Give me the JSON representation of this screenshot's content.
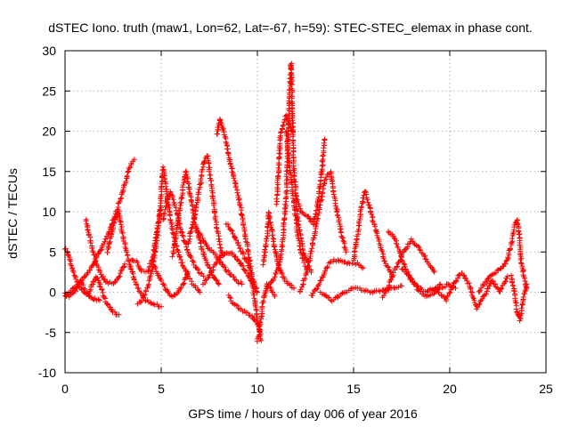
{
  "chart_data": {
    "type": "scatter",
    "title": "dSTEC Iono. truth (maw1, Lon=62, Lat=-67, h=59): STEC-STEC_elemax in phase cont.",
    "xlabel": "GPS time / hours of day 006 of year 2016",
    "ylabel": "dSTEC  / TECUs",
    "xlim": [
      0,
      25
    ],
    "ylim": [
      -10,
      30
    ],
    "x_ticks": [
      0,
      5,
      10,
      15,
      20,
      25
    ],
    "y_ticks": [
      -10,
      -5,
      0,
      5,
      10,
      15,
      20,
      25,
      30
    ],
    "grid": true,
    "marker": "plus",
    "color": "#ff0000",
    "tracks": [
      {
        "x": [
          0.0,
          0.3,
          0.6,
          0.9,
          1.2,
          1.5,
          1.8,
          2.2,
          2.6,
          3.0,
          3.3,
          3.5,
          3.6
        ],
        "y": [
          -0.5,
          0.2,
          0.8,
          1.5,
          2.5,
          3.5,
          5.0,
          7.0,
          9.5,
          12.5,
          15.0,
          16.2,
          16.5
        ]
      },
      {
        "x": [
          0.0,
          0.15,
          0.3,
          0.5,
          0.7,
          0.9,
          1.1,
          1.3,
          1.5,
          1.8
        ],
        "y": [
          5.5,
          5.0,
          3.5,
          2.0,
          1.0,
          0.3,
          -0.2,
          -0.5,
          -0.8,
          -1.0
        ]
      },
      {
        "x": [
          0.0,
          0.2,
          0.4,
          0.6,
          0.8,
          1.0,
          1.2,
          1.4,
          1.6,
          1.8,
          2.0,
          2.2,
          2.5,
          2.8
        ],
        "y": [
          0.0,
          -0.5,
          -0.2,
          0.4,
          1.5,
          0.5,
          -0.3,
          0.8,
          2.0,
          1.0,
          -0.5,
          -1.5,
          -2.5,
          -2.8
        ]
      },
      {
        "x": [
          1.1,
          1.3,
          1.6,
          1.9,
          2.2,
          2.5,
          2.7,
          2.9,
          3.1
        ],
        "y": [
          9.0,
          6.5,
          3.8,
          2.0,
          1.2,
          1.0,
          1.5,
          2.5,
          3.5
        ]
      },
      {
        "x": [
          2.2,
          2.4,
          2.6,
          2.8,
          3.0,
          3.3,
          3.6,
          3.9,
          4.2,
          4.6,
          5.0
        ],
        "y": [
          5.0,
          7.0,
          9.0,
          10.0,
          7.0,
          4.0,
          1.5,
          0.0,
          -1.0,
          -1.5,
          -1.8
        ]
      },
      {
        "x": [
          3.4,
          3.7,
          4.0,
          4.3,
          4.6,
          4.8,
          5.0
        ],
        "y": [
          4.0,
          3.8,
          2.5,
          2.5,
          4.8,
          7.8,
          10.5
        ]
      },
      {
        "x": [
          3.8,
          4.0,
          4.2,
          4.4,
          4.6,
          4.8,
          5.0,
          5.1,
          5.3,
          5.6,
          6.0,
          6.5,
          7.0
        ],
        "y": [
          -1.5,
          -1.0,
          0.0,
          1.5,
          3.5,
          7.0,
          12.0,
          15.5,
          12.0,
          7.5,
          4.0,
          1.5,
          0.0
        ]
      },
      {
        "x": [
          4.6,
          4.9,
          5.2,
          5.5,
          5.8,
          6.1,
          6.4
        ],
        "y": [
          3.5,
          2.0,
          0.5,
          -0.5,
          -0.2,
          0.8,
          2.5
        ]
      },
      {
        "x": [
          5.1,
          5.3,
          5.5,
          5.7,
          5.9,
          6.1,
          6.4,
          6.8,
          7.2
        ],
        "y": [
          9.0,
          11.5,
          12.5,
          11.0,
          9.0,
          7.0,
          5.0,
          3.0,
          2.0
        ]
      },
      {
        "x": [
          5.6,
          5.8,
          6.0,
          6.2,
          6.3,
          6.5,
          6.8,
          7.1,
          7.4,
          7.7,
          8.0
        ],
        "y": [
          4.5,
          7.5,
          11.0,
          14.0,
          15.0,
          12.0,
          8.0,
          5.5,
          3.5,
          2.0,
          1.0
        ]
      },
      {
        "x": [
          6.4,
          6.7,
          7.0,
          7.2,
          7.4,
          7.6,
          7.8,
          8.0,
          8.2
        ],
        "y": [
          6.0,
          9.0,
          13.0,
          16.0,
          17.0,
          13.5,
          9.5,
          6.5,
          4.5
        ]
      },
      {
        "x": [
          6.8,
          7.1,
          7.4,
          7.7,
          8.0,
          8.3,
          8.6,
          8.9,
          9.2
        ],
        "y": [
          8.0,
          7.0,
          5.5,
          5.0,
          4.0,
          3.0,
          2.2,
          1.5,
          1.0
        ]
      },
      {
        "x": [
          7.9,
          8.05,
          8.2,
          8.35,
          8.5,
          8.7,
          8.9,
          9.1,
          9.3,
          9.6,
          9.8,
          10.0,
          10.2
        ],
        "y": [
          19.5,
          21.5,
          20.5,
          19.0,
          17.0,
          15.0,
          13.0,
          11.0,
          8.0,
          4.0,
          0.0,
          -3.5,
          -6.0
        ]
      },
      {
        "x": [
          7.2,
          7.5,
          7.8,
          8.1,
          8.4,
          8.7,
          9.0,
          9.3,
          9.6,
          9.9
        ],
        "y": [
          1.0,
          2.0,
          3.5,
          4.5,
          5.0,
          4.8,
          4.0,
          3.0,
          1.8,
          0.5
        ]
      },
      {
        "x": [
          8.4,
          8.7,
          9.0,
          9.2,
          9.4,
          9.6,
          9.8,
          10.0
        ],
        "y": [
          8.5,
          7.5,
          6.0,
          5.0,
          4.0,
          3.0,
          1.5,
          0.0
        ]
      },
      {
        "x": [
          8.5,
          8.8,
          9.1,
          9.4,
          9.7,
          10.0
        ],
        "y": [
          -0.5,
          -1.5,
          -2.0,
          -2.5,
          -3.0,
          -4.0
        ]
      },
      {
        "x": [
          10.0,
          10.1,
          10.2,
          10.3,
          10.5,
          10.7,
          10.9
        ],
        "y": [
          -6.0,
          -5.0,
          -3.0,
          -1.0,
          1.0,
          0.5,
          -0.5
        ]
      },
      {
        "x": [
          10.3,
          10.5,
          10.6,
          10.8,
          11.0,
          11.3,
          11.6,
          11.9
        ],
        "y": [
          3.5,
          7.0,
          10.0,
          7.0,
          4.0,
          2.0,
          1.0,
          0.5
        ]
      },
      {
        "x": [
          10.5,
          10.8,
          11.1,
          11.3,
          11.5,
          11.6,
          11.7,
          11.75,
          11.8,
          11.9,
          12.1,
          12.4,
          12.8
        ],
        "y": [
          0.5,
          1.5,
          3.0,
          6.0,
          12.0,
          20.0,
          26.0,
          28.5,
          24.0,
          15.0,
          9.0,
          5.0,
          2.5
        ]
      },
      {
        "x": [
          11.5,
          11.7,
          11.9,
          12.1,
          12.3,
          12.6
        ],
        "y": [
          20.0,
          15.0,
          11.0,
          7.5,
          4.5,
          2.5
        ]
      },
      {
        "x": [
          11.0,
          11.2,
          11.5,
          11.8
        ],
        "y": [
          11.0,
          19.5,
          22.0,
          20.0
        ]
      },
      {
        "x": [
          12.0,
          12.3,
          12.6,
          12.9,
          13.1,
          13.3,
          13.5
        ],
        "y": [
          12.0,
          10.0,
          9.5,
          8.5,
          10.5,
          14.0,
          19.0
        ]
      },
      {
        "x": [
          12.2,
          12.5,
          12.8,
          13.1,
          13.4,
          13.6,
          13.8,
          14.0,
          14.3,
          14.6
        ],
        "y": [
          0.0,
          2.0,
          5.0,
          9.0,
          12.5,
          14.5,
          15.0,
          12.0,
          8.0,
          5.0
        ]
      },
      {
        "x": [
          12.8,
          13.1,
          13.4,
          13.7,
          14.0,
          14.4,
          14.8,
          15.2,
          15.5
        ],
        "y": [
          -0.5,
          0.5,
          2.0,
          3.5,
          4.0,
          3.8,
          3.5,
          3.6,
          3.0
        ]
      },
      {
        "x": [
          15.0,
          15.2,
          15.4,
          15.6,
          15.8,
          16.0,
          16.3,
          16.6,
          17.0
        ],
        "y": [
          4.0,
          7.0,
          10.5,
          12.5,
          11.0,
          9.0,
          6.5,
          4.0,
          2.0
        ]
      },
      {
        "x": [
          13.3,
          13.6,
          13.9,
          14.2,
          14.6,
          15.0,
          15.5,
          16.0,
          16.5,
          17.0,
          17.5
        ],
        "y": [
          0.0,
          -0.5,
          -1.0,
          -0.5,
          0.0,
          0.5,
          0.3,
          0.0,
          0.2,
          0.5,
          0.8
        ]
      },
      {
        "x": [
          16.5,
          16.8,
          17.0,
          17.3,
          17.6,
          18.0,
          18.4,
          18.8,
          19.2
        ],
        "y": [
          -0.5,
          0.5,
          2.0,
          3.5,
          5.0,
          6.5,
          5.5,
          4.0,
          2.5
        ]
      },
      {
        "x": [
          16.8,
          17.1,
          17.4,
          17.7,
          18.0,
          18.4,
          18.8,
          19.2,
          19.5
        ],
        "y": [
          7.5,
          7.0,
          5.0,
          3.0,
          1.5,
          0.5,
          0.0,
          0.3,
          1.0
        ]
      },
      {
        "x": [
          17.5,
          17.9,
          18.3,
          18.7,
          19.1,
          19.5,
          19.9,
          20.3
        ],
        "y": [
          3.0,
          2.0,
          0.5,
          -0.5,
          -0.3,
          0.5,
          1.0,
          0.5
        ]
      },
      {
        "x": [
          19.0,
          19.4,
          19.8,
          20.2,
          20.6,
          21.0,
          21.4,
          21.8,
          22.2,
          22.6,
          23.0
        ],
        "y": [
          0.5,
          0.0,
          -1.0,
          1.0,
          2.5,
          1.0,
          -2.0,
          -0.5,
          1.5,
          0.0,
          2.0
        ]
      },
      {
        "x": [
          21.5,
          21.8,
          22.1,
          22.4,
          22.7,
          23.0,
          23.2,
          23.4,
          23.5,
          23.6,
          23.7,
          23.9,
          24.0
        ],
        "y": [
          0.0,
          1.0,
          2.0,
          2.5,
          3.0,
          4.0,
          6.0,
          8.5,
          9.0,
          7.5,
          4.0,
          1.5,
          0.5
        ]
      },
      {
        "x": [
          23.2,
          23.35,
          23.5,
          23.65,
          23.8,
          24.0
        ],
        "y": [
          2.0,
          0.0,
          -2.5,
          -3.5,
          -1.0,
          1.0
        ]
      }
    ]
  }
}
